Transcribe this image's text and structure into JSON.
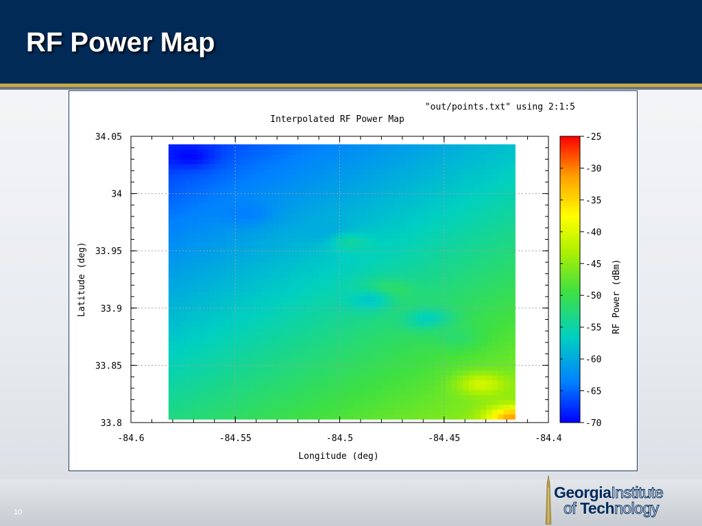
{
  "slide": {
    "title": "RF Power Map",
    "page_number": "10",
    "logo": {
      "line1_bold": "Georgia",
      "line1_light": "Institute",
      "line2_light_a": "of ",
      "line2_bold": "Tech",
      "line2_light_b": "nology"
    }
  },
  "colors": {
    "header_bg": "#012a57",
    "gold_rule": "#c6a842",
    "title_text": "#ffffff"
  },
  "chart_data": {
    "type": "heatmap",
    "title": "Interpolated RF Power Map",
    "key_label": "\"out/points.txt\" using 2:1:5",
    "xlabel": "Longitude (deg)",
    "ylabel": "Latitude (deg)",
    "colorbar_label": "RF Power  (dBm)",
    "xlim": [
      -84.6,
      -84.4
    ],
    "ylim": [
      33.8,
      34.05
    ],
    "data_extent": {
      "x": [
        -84.582,
        -84.416
      ],
      "y": [
        33.803,
        34.043
      ]
    },
    "x_ticks": [
      -84.6,
      -84.55,
      -84.5,
      -84.45,
      -84.4
    ],
    "x_tick_labels": [
      "-84.6",
      "-84.55",
      "-84.5",
      "-84.45",
      "-84.4"
    ],
    "y_ticks": [
      33.8,
      33.85,
      33.9,
      33.95,
      34.0,
      34.05
    ],
    "y_tick_labels": [
      "33.8",
      "33.85",
      "33.9",
      "33.95",
      "34",
      "34.05"
    ],
    "colorbar_range": [
      -70,
      -25
    ],
    "colorbar_ticks": [
      -25,
      -30,
      -35,
      -40,
      -45,
      -50,
      -55,
      -60,
      -65,
      -70
    ],
    "colorbar_tick_labels": [
      "-25",
      "-30",
      "-35",
      "-40",
      "-45",
      "-50",
      "-55",
      "-60",
      "-65",
      "-70"
    ],
    "grid": true,
    "colormap": [
      "#0000ff",
      "#0080ff",
      "#00d0c0",
      "#40e040",
      "#b0f000",
      "#ffff00",
      "#ffa000",
      "#ff0000"
    ],
    "corner_values_dbm": {
      "top_left": -68,
      "top_right": -58,
      "bottom_left": -53,
      "bottom_right": -44
    },
    "hotspots": [
      {
        "x": -84.432,
        "y": 33.834,
        "value": -40
      },
      {
        "x": -84.417,
        "y": 33.804,
        "value": -30
      },
      {
        "x": -84.572,
        "y": 34.033,
        "value": -70
      },
      {
        "x": -84.501,
        "y": 33.963,
        "value": -62
      },
      {
        "x": -84.545,
        "y": 33.983,
        "value": -64
      },
      {
        "x": -84.478,
        "y": 33.914,
        "value": -49
      },
      {
        "x": -84.485,
        "y": 33.908,
        "value": -58
      },
      {
        "x": -84.462,
        "y": 33.896,
        "value": -51
      },
      {
        "x": -84.458,
        "y": 33.891,
        "value": -57
      },
      {
        "x": -84.445,
        "y": 33.875,
        "value": -52
      },
      {
        "x": -84.495,
        "y": 33.958,
        "value": -54
      }
    ]
  }
}
